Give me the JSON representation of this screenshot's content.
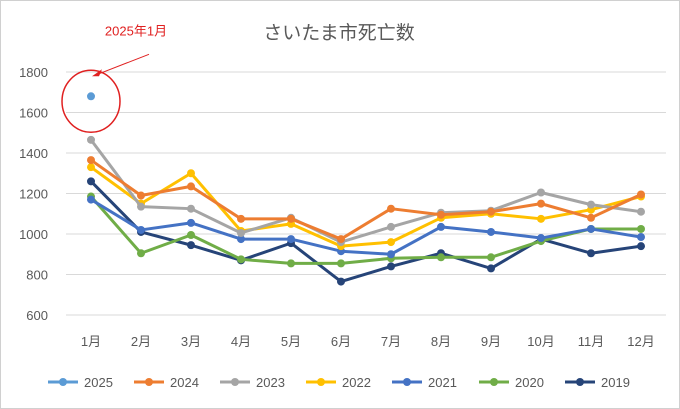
{
  "chart_data": {
    "type": "line",
    "title": "さいたま市死亡数",
    "xlabel": "",
    "ylabel": "",
    "categories": [
      "1月",
      "2月",
      "3月",
      "4月",
      "5月",
      "6月",
      "7月",
      "8月",
      "9月",
      "10月",
      "11月",
      "12月"
    ],
    "ylim": [
      600,
      1800
    ],
    "yticks": [
      600,
      800,
      1000,
      1200,
      1400,
      1600,
      1800
    ],
    "grid": "horizontal",
    "legend_position": "bottom",
    "annotation": {
      "text": "2025年1月",
      "target_series": "2025",
      "target_index": 0,
      "color": "#e02020"
    },
    "series": [
      {
        "name": "2025",
        "color": "#5b9bd5",
        "values": [
          1680,
          null,
          null,
          null,
          null,
          null,
          null,
          null,
          null,
          null,
          null,
          null
        ]
      },
      {
        "name": "2024",
        "color": "#ed7d31",
        "values": [
          1365,
          1190,
          1235,
          1075,
          1075,
          975,
          1125,
          1095,
          1110,
          1150,
          1080,
          1195
        ]
      },
      {
        "name": "2023",
        "color": "#a5a5a5",
        "values": [
          1465,
          1135,
          1125,
          1005,
          1080,
          960,
          1035,
          1105,
          1115,
          1205,
          1145,
          1110
        ]
      },
      {
        "name": "2022",
        "color": "#ffc000",
        "values": [
          1330,
          1150,
          1300,
          1015,
          1050,
          940,
          960,
          1080,
          1100,
          1075,
          1120,
          1185
        ]
      },
      {
        "name": "2021",
        "color": "#4472c4",
        "values": [
          1170,
          1020,
          1055,
          975,
          975,
          915,
          900,
          1035,
          1010,
          980,
          1025,
          985
        ]
      },
      {
        "name": "2020",
        "color": "#70ad47",
        "values": [
          1185,
          905,
          995,
          875,
          855,
          855,
          880,
          885,
          885,
          965,
          1025,
          1025
        ]
      },
      {
        "name": "2019",
        "color": "#264478",
        "values": [
          1260,
          1010,
          945,
          870,
          955,
          765,
          840,
          905,
          830,
          975,
          905,
          940
        ]
      }
    ]
  }
}
